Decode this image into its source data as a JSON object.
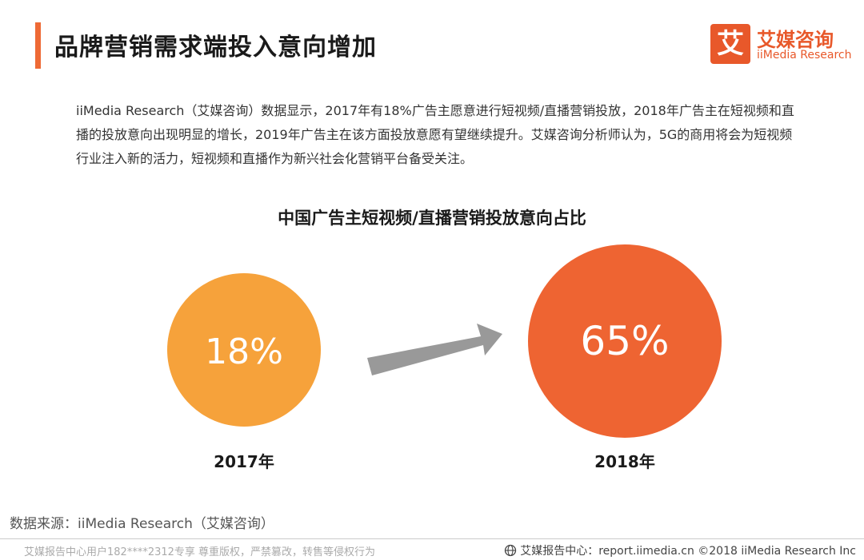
{
  "header": {
    "title": "品牌营销需求端投入意向增加",
    "logo_mark": "艾",
    "logo_cn": "艾媒咨询",
    "logo_en": "iiMedia Research"
  },
  "description": "iiMedia Research（艾媒咨询）数据显示，2017年有18%广告主愿意进行短视频/直播营销投放，2018年广告主在短视频和直播的投放意向出现明显的增长，2019年广告主在该方面投放意愿有望继续提升。艾媒咨询分析师认为，5G的商用将会为短视频行业注入新的活力，短视频和直播作为新兴社会化营销平台备受关注。",
  "chart_data": {
    "type": "bubble",
    "title": "中国广告主短视频/直播营销投放意向占比",
    "categories": [
      "2017年",
      "2018年"
    ],
    "values": [
      18,
      65
    ],
    "value_labels": [
      "18%",
      "65%"
    ],
    "unit": "%",
    "colors": [
      "#f6a23b",
      "#ee6432"
    ],
    "arrow_color": "#999999"
  },
  "source": "数据来源：iiMedia Research（艾媒咨询）",
  "footer": {
    "left": "艾媒报告中心用户182****2312专享 尊重版权，严禁篡改，转售等侵权行为",
    "right": "艾媒报告中心：report.iimedia.cn  ©2018  iiMedia Research  Inc"
  }
}
